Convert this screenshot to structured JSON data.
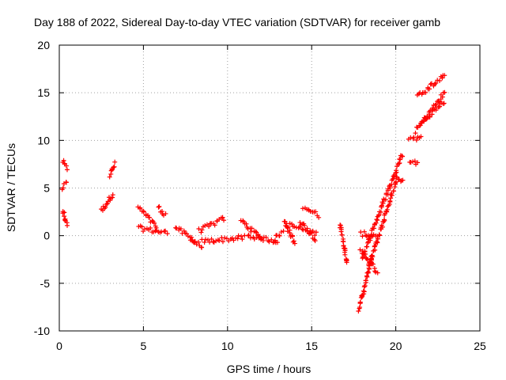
{
  "chart_data": {
    "type": "scatter",
    "title": "Day 188 of 2022, Sidereal Day-to-day VTEC variation (SDTVAR) for receiver gamb",
    "xlabel": "GPS time / hours",
    "ylabel": "SDTVAR / TECUs",
    "xlim": [
      0,
      25
    ],
    "ylim": [
      -10,
      20
    ],
    "xticks": [
      0,
      5,
      10,
      15,
      20,
      25
    ],
    "yticks": [
      -10,
      -5,
      0,
      5,
      10,
      15,
      20
    ],
    "grid": true,
    "marker": "+",
    "color": "#ff0000",
    "series": [
      {
        "name": "SDTVAR",
        "segments": [
          {
            "x": [
              0.2,
              0.45
            ],
            "y": [
              7.8,
              7.0
            ]
          },
          {
            "x": [
              0.15,
              0.45
            ],
            "y": [
              5.0,
              5.6
            ]
          },
          {
            "x": [
              0.2,
              0.45
            ],
            "y": [
              2.6,
              1.2
            ]
          },
          {
            "x": [
              2.5,
              3.2
            ],
            "y": [
              2.6,
              4.4
            ]
          },
          {
            "x": [
              3.0,
              3.3
            ],
            "y": [
              6.3,
              7.5
            ]
          },
          {
            "x": [
              4.7,
              5.8
            ],
            "y": [
              3.0,
              0.9
            ]
          },
          {
            "x": [
              4.7,
              6.4
            ],
            "y": [
              0.8,
              0.3
            ]
          },
          {
            "x": [
              5.9,
              6.3
            ],
            "y": [
              3.0,
              2.2
            ]
          },
          {
            "x": [
              6.9,
              8.1
            ],
            "y": [
              0.9,
              -0.6
            ]
          },
          {
            "x": [
              7.8,
              8.5
            ],
            "y": [
              -0.4,
              -1.2
            ]
          },
          {
            "x": [
              8.3,
              9.8
            ],
            "y": [
              0.5,
              1.8
            ]
          },
          {
            "x": [
              8.5,
              11.0
            ],
            "y": [
              -0.6,
              -0.2
            ]
          },
          {
            "x": [
              10.8,
              12.0
            ],
            "y": [
              1.6,
              -0.3
            ]
          },
          {
            "x": [
              11.2,
              13.0
            ],
            "y": [
              0.0,
              -0.6
            ]
          },
          {
            "x": [
              12.8,
              13.3
            ],
            "y": [
              -0.3,
              0.4
            ]
          },
          {
            "x": [
              13.4,
              14.0
            ],
            "y": [
              1.5,
              -0.8
            ]
          },
          {
            "x": [
              13.5,
              15.3
            ],
            "y": [
              1.2,
              0.2
            ]
          },
          {
            "x": [
              14.5,
              15.4
            ],
            "y": [
              3.1,
              2.1
            ]
          },
          {
            "x": [
              14.3,
              15.2
            ],
            "y": [
              1.5,
              -0.3
            ]
          },
          {
            "x": [
              16.7,
              17.1
            ],
            "y": [
              1.2,
              -3.0
            ]
          },
          {
            "x": [
              17.9,
              18.9
            ],
            "y": [
              0.2,
              0.0
            ]
          },
          {
            "x": [
              17.8,
              18.6
            ],
            "y": [
              -7.8,
              -2.0
            ]
          },
          {
            "x": [
              17.9,
              18.9
            ],
            "y": [
              -1.5,
              -3.8
            ]
          },
          {
            "x": [
              18.0,
              20.4
            ],
            "y": [
              -2.3,
              8.6
            ]
          },
          {
            "x": [
              18.4,
              20.0
            ],
            "y": [
              -3.2,
              5.5
            ]
          },
          {
            "x": [
              20.0,
              20.4
            ],
            "y": [
              6.4,
              5.6
            ]
          },
          {
            "x": [
              20.8,
              21.3
            ],
            "y": [
              7.8,
              7.6
            ]
          },
          {
            "x": [
              20.8,
              21.5
            ],
            "y": [
              10.0,
              10.4
            ]
          },
          {
            "x": [
              21.2,
              22.9
            ],
            "y": [
              11.0,
              15.0
            ]
          },
          {
            "x": [
              21.5,
              22.9
            ],
            "y": [
              11.8,
              14.1
            ]
          },
          {
            "x": [
              21.3,
              21.9
            ],
            "y": [
              14.6,
              15.3
            ]
          },
          {
            "x": [
              21.9,
              22.9
            ],
            "y": [
              15.5,
              16.8
            ]
          }
        ]
      }
    ]
  }
}
